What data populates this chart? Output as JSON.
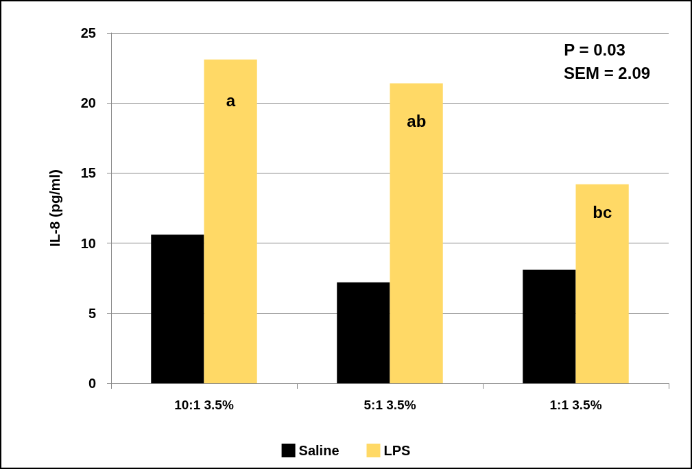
{
  "chart_data": {
    "type": "bar",
    "ylabel": "IL-8 (pg/ml)",
    "categories": [
      "10:1 3.5%",
      "5:1 3.5%",
      "1:1 3.5%"
    ],
    "series": [
      {
        "name": "Saline",
        "color": "#000000",
        "values": [
          10.6,
          7.2,
          8.1
        ]
      },
      {
        "name": "LPS",
        "color": "#ffd966",
        "values": [
          23.1,
          21.4,
          14.2
        ]
      }
    ],
    "ylim": [
      0,
      25
    ],
    "yticks": [
      0,
      5,
      10,
      15,
      20,
      25
    ],
    "grid": "y",
    "legend": "bottom",
    "annotations": [
      "P = 0.03",
      "SEM = 2.09",
      {
        "text": "a",
        "x": "10:1 3.5%",
        "y": 20.2
      },
      {
        "text": "ab",
        "x": "5:1 3.5%",
        "y": 18.7
      },
      {
        "text": "bc",
        "x": "1:1 3.5%",
        "y": 12.2
      }
    ]
  }
}
